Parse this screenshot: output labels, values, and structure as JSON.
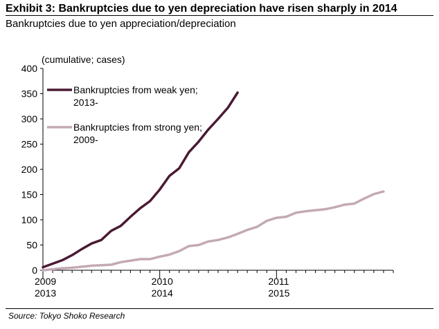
{
  "header": {
    "title": "Exhibit 3: Bankruptcies due to yen depreciation have risen sharply in 2014",
    "subtitle": "Bankruptcies due to yen appreciation/depreciation"
  },
  "footer": {
    "source": "Source: Tokyo Shoko Research"
  },
  "chart_data": {
    "type": "line",
    "ylabel": "(cumulative; cases)",
    "ylim": [
      0,
      400
    ],
    "yticks": [
      0,
      50,
      100,
      150,
      200,
      250,
      300,
      350,
      400
    ],
    "x_months": 36,
    "xticks": [
      {
        "month": 0,
        "line1": "2009",
        "line2": "2013"
      },
      {
        "month": 12,
        "line1": "2010",
        "line2": "2014"
      },
      {
        "month": 24,
        "line1": "2011",
        "line2": "2015"
      }
    ],
    "grid": false,
    "legend_placement": "top-left",
    "series": [
      {
        "name": "Bankruptcies from weak yen;\n2013-",
        "color": "#4a1a33",
        "values": [
          6,
          13,
          20,
          30,
          42,
          53,
          60,
          78,
          88,
          106,
          123,
          137,
          160,
          187,
          202,
          234,
          255,
          279,
          300,
          322,
          352
        ]
      },
      {
        "name": "Bankruptcies from strong yen;\n2009-",
        "color": "#c3a9b4",
        "values": [
          0,
          2,
          4,
          5,
          7,
          9,
          10,
          11,
          16,
          19,
          22,
          22,
          27,
          31,
          38,
          48,
          50,
          57,
          60,
          65,
          72,
          80,
          86,
          98,
          104,
          106,
          114,
          117,
          119,
          121,
          125,
          130,
          132,
          142,
          151,
          156
        ]
      }
    ]
  }
}
